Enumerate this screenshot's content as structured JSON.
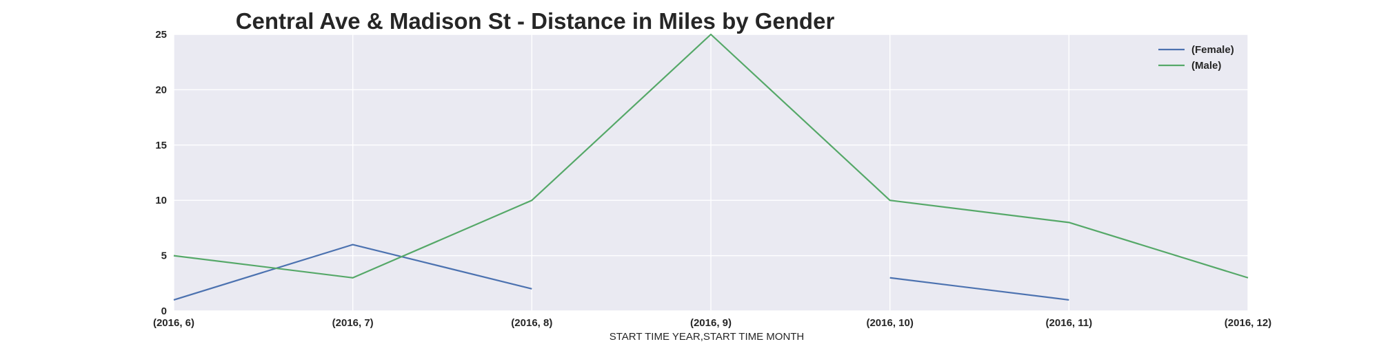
{
  "chart_data": {
    "type": "line",
    "title": "Central Ave & Madison St - Distance in Miles by Gender",
    "xlabel": "START TIME YEAR,START TIME MONTH",
    "ylabel": "",
    "categories": [
      "(2016, 6)",
      "(2016, 7)",
      "(2016, 8)",
      "(2016, 9)",
      "(2016, 10)",
      "(2016, 11)",
      "(2016, 12)"
    ],
    "yticks": [
      "0",
      "5",
      "10",
      "15",
      "20",
      "25"
    ],
    "ylim": [
      0,
      25
    ],
    "grid": true,
    "legend_position": "top-right",
    "background": "#EAEAF2",
    "series": [
      {
        "name": "(Female)",
        "color": "#4C72B0",
        "values": [
          1,
          6,
          2,
          null,
          3,
          1,
          null
        ]
      },
      {
        "name": "(Male)",
        "color": "#55A868",
        "values": [
          5,
          3,
          10,
          25,
          10,
          8,
          3
        ]
      }
    ]
  }
}
